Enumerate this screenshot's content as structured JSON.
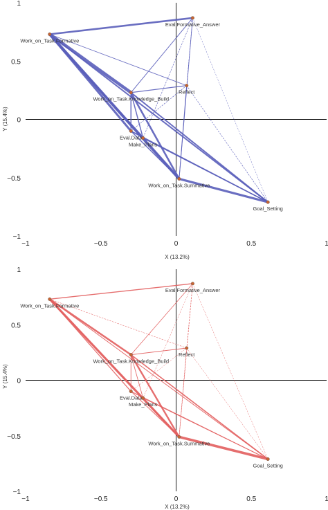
{
  "colors": {
    "top": "#5a5fbb",
    "bottom": "#e35f5f",
    "axis": "#000000",
    "point": "#c86432"
  },
  "chart_data": [
    {
      "type": "network",
      "panel": "top",
      "xlabel": "X (13.2%)",
      "ylabel": "Y (15.4%)",
      "xlim": [
        -1,
        1
      ],
      "ylim": [
        -1,
        1
      ],
      "xticks": [
        "−1",
        "−0.5",
        "0",
        "0.5",
        "1"
      ],
      "yticks": [
        "1",
        "0.5",
        "0",
        "−0.5",
        "−1"
      ],
      "nodes": [
        {
          "name": "Work_on_Task.Formative",
          "x": -0.84,
          "y": 0.73
        },
        {
          "name": "Eval.Formative_Answer",
          "x": 0.11,
          "y": 0.87
        },
        {
          "name": "Work_on_Task.Knowledge_Build",
          "x": -0.3,
          "y": 0.23
        },
        {
          "name": "Reflect",
          "x": 0.07,
          "y": 0.29
        },
        {
          "name": "Eval.Data",
          "x": -0.3,
          "y": -0.1
        },
        {
          "name": "Make_Plans",
          "x": -0.22,
          "y": -0.16
        },
        {
          "name": "Work_on_Task.Summative",
          "x": 0.02,
          "y": -0.51
        },
        {
          "name": "Goal_Setting",
          "x": 0.61,
          "y": -0.71
        }
      ],
      "edges": [
        {
          "a": 0,
          "b": 1,
          "w": 2.6
        },
        {
          "a": 0,
          "b": 2,
          "w": 4.5
        },
        {
          "a": 0,
          "b": 3,
          "w": 0.9
        },
        {
          "a": 0,
          "b": 4,
          "w": 3.0
        },
        {
          "a": 0,
          "b": 5,
          "w": 3.0
        },
        {
          "a": 0,
          "b": 6,
          "w": 4.0
        },
        {
          "a": 0,
          "b": 7,
          "w": 2.0
        },
        {
          "a": 1,
          "b": 2,
          "w": 1.0
        },
        {
          "a": 1,
          "b": 3,
          "w": 0.6
        },
        {
          "a": 1,
          "b": 5,
          "w": 0.7
        },
        {
          "a": 1,
          "b": 6,
          "w": 0.9
        },
        {
          "a": 1,
          "b": 7,
          "w": 0.5
        },
        {
          "a": 2,
          "b": 3,
          "w": 1.2
        },
        {
          "a": 2,
          "b": 4,
          "w": 1.5
        },
        {
          "a": 2,
          "b": 5,
          "w": 1.5
        },
        {
          "a": 2,
          "b": 6,
          "w": 2.6
        },
        {
          "a": 2,
          "b": 7,
          "w": 2.0
        },
        {
          "a": 3,
          "b": 6,
          "w": 1.0
        },
        {
          "a": 3,
          "b": 7,
          "w": 0.7
        },
        {
          "a": 3,
          "b": 4,
          "w": 0.7
        },
        {
          "a": 4,
          "b": 5,
          "w": 1.0
        },
        {
          "a": 4,
          "b": 6,
          "w": 1.5
        },
        {
          "a": 4,
          "b": 7,
          "w": 1.5
        },
        {
          "a": 5,
          "b": 6,
          "w": 1.8
        },
        {
          "a": 5,
          "b": 7,
          "w": 1.5
        },
        {
          "a": 6,
          "b": 7,
          "w": 3.2
        }
      ]
    },
    {
      "type": "network",
      "panel": "bottom",
      "xlabel": "X (13.2%)",
      "ylabel": "Y (15.4%)",
      "xlim": [
        -1,
        1
      ],
      "ylim": [
        -1,
        1
      ],
      "xticks": [
        "−1",
        "−0.5",
        "0",
        "0.5",
        "1"
      ],
      "yticks": [
        "1",
        "0.5",
        "0",
        "−0.5",
        "−1"
      ],
      "nodes": [
        {
          "name": "Work_on_Task.Formative",
          "x": -0.84,
          "y": 0.73
        },
        {
          "name": "Eval.Formative_Answer",
          "x": 0.11,
          "y": 0.87
        },
        {
          "name": "Work_on_Task.Knowledge_Build",
          "x": -0.3,
          "y": 0.23
        },
        {
          "name": "Reflect",
          "x": 0.07,
          "y": 0.29
        },
        {
          "name": "Eval.Data",
          "x": -0.3,
          "y": -0.1
        },
        {
          "name": "Make_Plans",
          "x": -0.22,
          "y": -0.16
        },
        {
          "name": "Work_on_Task.Summative",
          "x": 0.02,
          "y": -0.51
        },
        {
          "name": "Goal_Setting",
          "x": 0.61,
          "y": -0.71
        }
      ],
      "edges": [
        {
          "a": 0,
          "b": 1,
          "w": 1.4
        },
        {
          "a": 0,
          "b": 2,
          "w": 2.5
        },
        {
          "a": 0,
          "b": 3,
          "w": 0.6
        },
        {
          "a": 0,
          "b": 4,
          "w": 1.2
        },
        {
          "a": 0,
          "b": 5,
          "w": 1.0
        },
        {
          "a": 0,
          "b": 6,
          "w": 3.2
        },
        {
          "a": 0,
          "b": 7,
          "w": 1.0
        },
        {
          "a": 1,
          "b": 2,
          "w": 0.8
        },
        {
          "a": 1,
          "b": 3,
          "w": 0.5
        },
        {
          "a": 1,
          "b": 5,
          "w": 0.5
        },
        {
          "a": 1,
          "b": 6,
          "w": 0.7
        },
        {
          "a": 1,
          "b": 7,
          "w": 0.5
        },
        {
          "a": 2,
          "b": 3,
          "w": 1.0
        },
        {
          "a": 2,
          "b": 4,
          "w": 0.9
        },
        {
          "a": 2,
          "b": 5,
          "w": 0.9
        },
        {
          "a": 2,
          "b": 6,
          "w": 2.4
        },
        {
          "a": 2,
          "b": 7,
          "w": 1.6
        },
        {
          "a": 3,
          "b": 6,
          "w": 0.7
        },
        {
          "a": 3,
          "b": 7,
          "w": 0.5
        },
        {
          "a": 3,
          "b": 4,
          "w": 0.5
        },
        {
          "a": 4,
          "b": 5,
          "w": 0.7
        },
        {
          "a": 4,
          "b": 6,
          "w": 1.0
        },
        {
          "a": 4,
          "b": 7,
          "w": 0.9
        },
        {
          "a": 5,
          "b": 6,
          "w": 1.2
        },
        {
          "a": 5,
          "b": 7,
          "w": 1.0
        },
        {
          "a": 6,
          "b": 7,
          "w": 3.6
        }
      ]
    }
  ]
}
